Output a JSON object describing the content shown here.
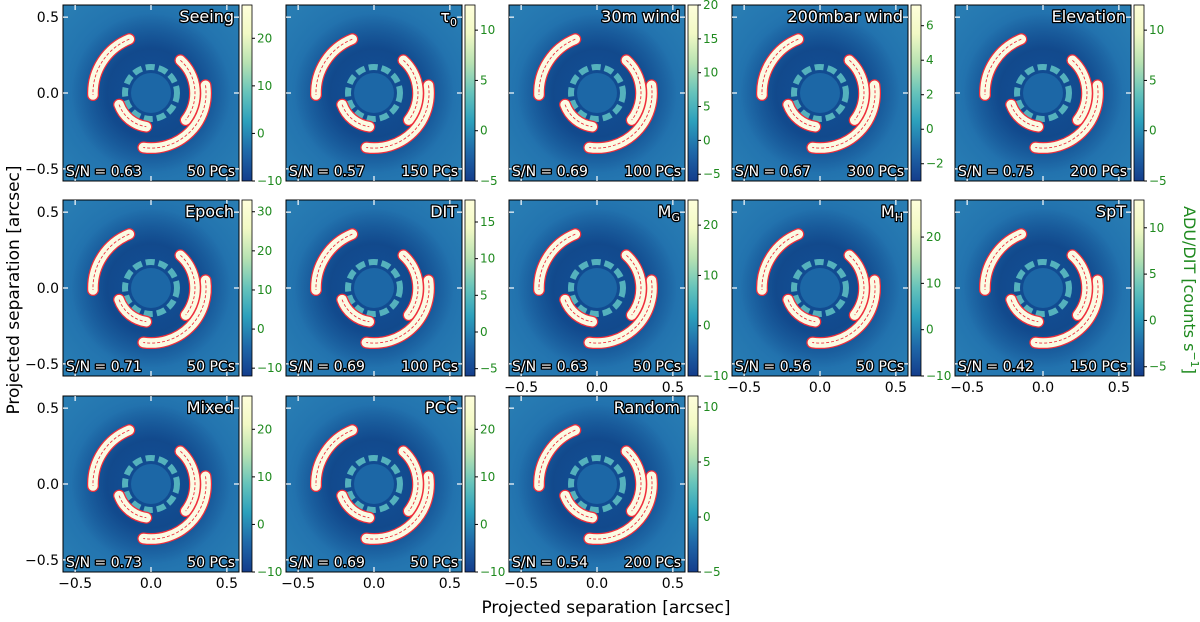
{
  "figure": {
    "xlabel": "Projected separation [arcsec]",
    "ylabel": "Projected separation [arcsec]",
    "cbar_label_text": "ADU/DIT [counts s",
    "cbar_label_sup": "−1",
    "cbar_label_end": "]"
  },
  "colors": {
    "bg_dark": "#0b3f86",
    "bg_mid": "#1c67a6",
    "bright": "#fbfbe3",
    "ring": "#54b1bd",
    "model_outline": "#ef2f3c",
    "tick_label_green": "#1f8a1f",
    "colormap": [
      "#143d8c",
      "#1f69a9",
      "#2ca0bc",
      "#65c3bb",
      "#b7e2b2",
      "#f2f9c5",
      "#fefedb"
    ]
  },
  "chart_data": {
    "type": "heatmap",
    "colormap": "YlGnBu_r",
    "axes_units": "arcsec",
    "xlim": [
      -0.58,
      0.58
    ],
    "ylim": [
      -0.58,
      0.58
    ],
    "xticks": [
      -0.5,
      0.0,
      0.5
    ],
    "yticks": [
      -0.5,
      0.0,
      0.5
    ],
    "x_tick_labels": [
      "−0.5",
      "0.0",
      "0.5"
    ],
    "y_tick_labels": [
      "−0.5",
      "0.0",
      "0.5"
    ],
    "panels": [
      {
        "title": "Seeing",
        "snr": "S/N = 0.63",
        "pcs": "50 PCs",
        "cbar_ticks": [
          -10,
          0,
          10,
          20
        ],
        "cbar_tick_labels": [
          "−10",
          "0",
          "10",
          "20"
        ],
        "vmin": -10,
        "vmax": 27
      },
      {
        "title_main": "τ",
        "title_sub": "0",
        "snr": "S/N = 0.57",
        "pcs": "150 PCs",
        "cbar_ticks": [
          -5,
          0,
          5,
          10
        ],
        "cbar_tick_labels": [
          "−5",
          "0",
          "5",
          "10"
        ],
        "vmin": -5,
        "vmax": 12.5
      },
      {
        "title": "30m wind",
        "snr": "S/N = 0.69",
        "pcs": "100 PCs",
        "cbar_ticks": [
          -5,
          0,
          5,
          10,
          15,
          20
        ],
        "cbar_tick_labels": [
          "−5",
          "0",
          "5",
          "10",
          "15",
          "20"
        ],
        "vmin": -6,
        "vmax": 20
      },
      {
        "title": "200mbar wind",
        "snr": "S/N = 0.67",
        "pcs": "300 PCs",
        "cbar_ticks": [
          -2,
          0,
          2,
          4,
          6
        ],
        "cbar_tick_labels": [
          "−2",
          "0",
          "2",
          "4",
          "6"
        ],
        "vmin": -3,
        "vmax": 7.2
      },
      {
        "title": "Elevation",
        "snr": "S/N = 0.75",
        "pcs": "200 PCs",
        "cbar_ticks": [
          -5,
          0,
          5,
          10
        ],
        "cbar_tick_labels": [
          "−5",
          "0",
          "5",
          "10"
        ],
        "vmin": -5,
        "vmax": 12.5
      },
      {
        "title": "Epoch",
        "snr": "S/N = 0.71",
        "pcs": "50 PCs",
        "cbar_ticks": [
          -10,
          0,
          10,
          20,
          30
        ],
        "cbar_tick_labels": [
          "−10",
          "0",
          "10",
          "20",
          "30"
        ],
        "vmin": -12,
        "vmax": 33
      },
      {
        "title": "DIT",
        "snr": "S/N = 0.69",
        "pcs": "100 PCs",
        "cbar_ticks": [
          -5,
          0,
          5,
          10,
          15
        ],
        "cbar_tick_labels": [
          "−5",
          "0",
          "5",
          "10",
          "15"
        ],
        "vmin": -6,
        "vmax": 18
      },
      {
        "title_main": "M",
        "title_sub": "G",
        "snr": "S/N = 0.63",
        "pcs": "50 PCs",
        "cbar_ticks": [
          -10,
          0,
          10,
          20
        ],
        "cbar_tick_labels": [
          "−10",
          "0",
          "10",
          "20"
        ],
        "vmin": -10,
        "vmax": 25
      },
      {
        "title_main": "M",
        "title_sub": "H",
        "snr": "S/N = 0.56",
        "pcs": "50 PCs",
        "cbar_ticks": [
          -10,
          0,
          10,
          20
        ],
        "cbar_tick_labels": [
          "−10",
          "0",
          "10",
          "20"
        ],
        "vmin": -10,
        "vmax": 28
      },
      {
        "title": "SpT",
        "snr": "S/N = 0.42",
        "pcs": "150 PCs",
        "cbar_ticks": [
          -5,
          0,
          5,
          10
        ],
        "cbar_tick_labels": [
          "−5",
          "0",
          "5",
          "10"
        ],
        "vmin": -6,
        "vmax": 13
      },
      {
        "title": "Mixed",
        "snr": "S/N = 0.73",
        "pcs": "50 PCs",
        "cbar_ticks": [
          -10,
          0,
          10,
          20
        ],
        "cbar_tick_labels": [
          "−10",
          "0",
          "10",
          "20"
        ],
        "vmin": -10,
        "vmax": 27
      },
      {
        "title": "PCC",
        "snr": "S/N = 0.69",
        "pcs": "50 PCs",
        "cbar_ticks": [
          -10,
          0,
          10,
          20
        ],
        "cbar_tick_labels": [
          "−10",
          "0",
          "10",
          "20"
        ],
        "vmin": -10,
        "vmax": 27
      },
      {
        "title": "Random",
        "snr": "S/N = 0.54",
        "pcs": "200 PCs",
        "cbar_ticks": [
          -5,
          0,
          5,
          10
        ],
        "cbar_tick_labels": [
          "−5",
          "0",
          "5",
          "10"
        ],
        "vmin": -5,
        "vmax": 11
      }
    ],
    "panels_with_x_tick_labels": [
      7,
      8,
      9,
      10,
      11,
      12
    ],
    "panels_with_y_tick_labels": [
      0,
      5,
      10
    ]
  }
}
